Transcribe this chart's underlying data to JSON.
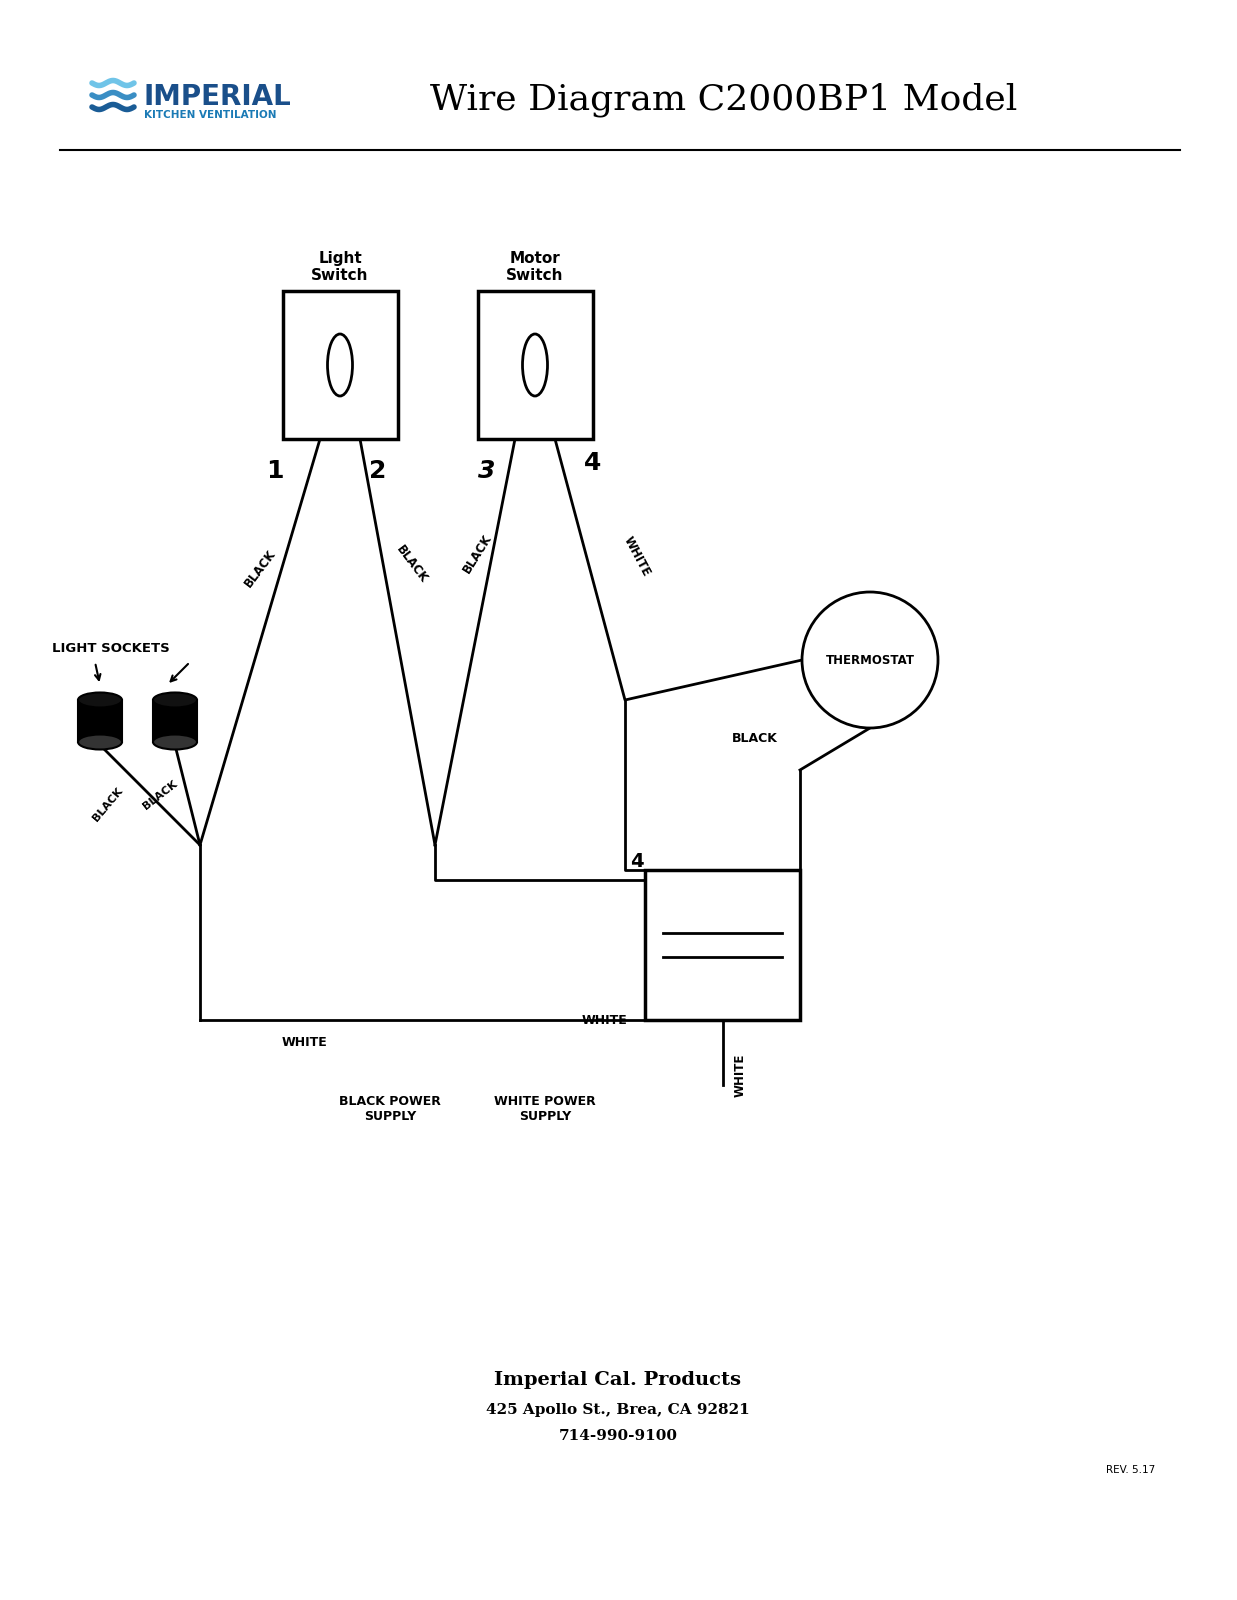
{
  "title": "Wire Diagram C2000BP1 Model",
  "company_line1": "Imperial Cal. Products",
  "company_line2": "425 Apollo St., Brea, CA 92821",
  "company_line3": "714-990-9100",
  "rev": "REV. 5.17",
  "bg_color": "#ffffff",
  "logo_text": "IMPERIAL",
  "logo_sub": "KITCHEN VENTILATION",
  "logo_color": "#1a4f8a",
  "logo_sub_color": "#1a7ab5",
  "logo_stripe_colors": [
    "#70c4e8",
    "#3a8ec4",
    "#1a5c96"
  ],
  "light_switch_label": "Light\nSwitch",
  "motor_switch_label": "Motor\nSwitch",
  "thermostat_label": "THERMOSTAT",
  "light_sockets_label": "LIGHT SOCKETS",
  "black_power_label": "BLACK POWER\nSUPPLY",
  "white_power_label": "WHITE POWER\nSUPPLY",
  "wire_label_black": "BLACK",
  "wire_label_white": "WHITE",
  "num1": "1",
  "num2": "2",
  "num3": "3",
  "num4": "4"
}
